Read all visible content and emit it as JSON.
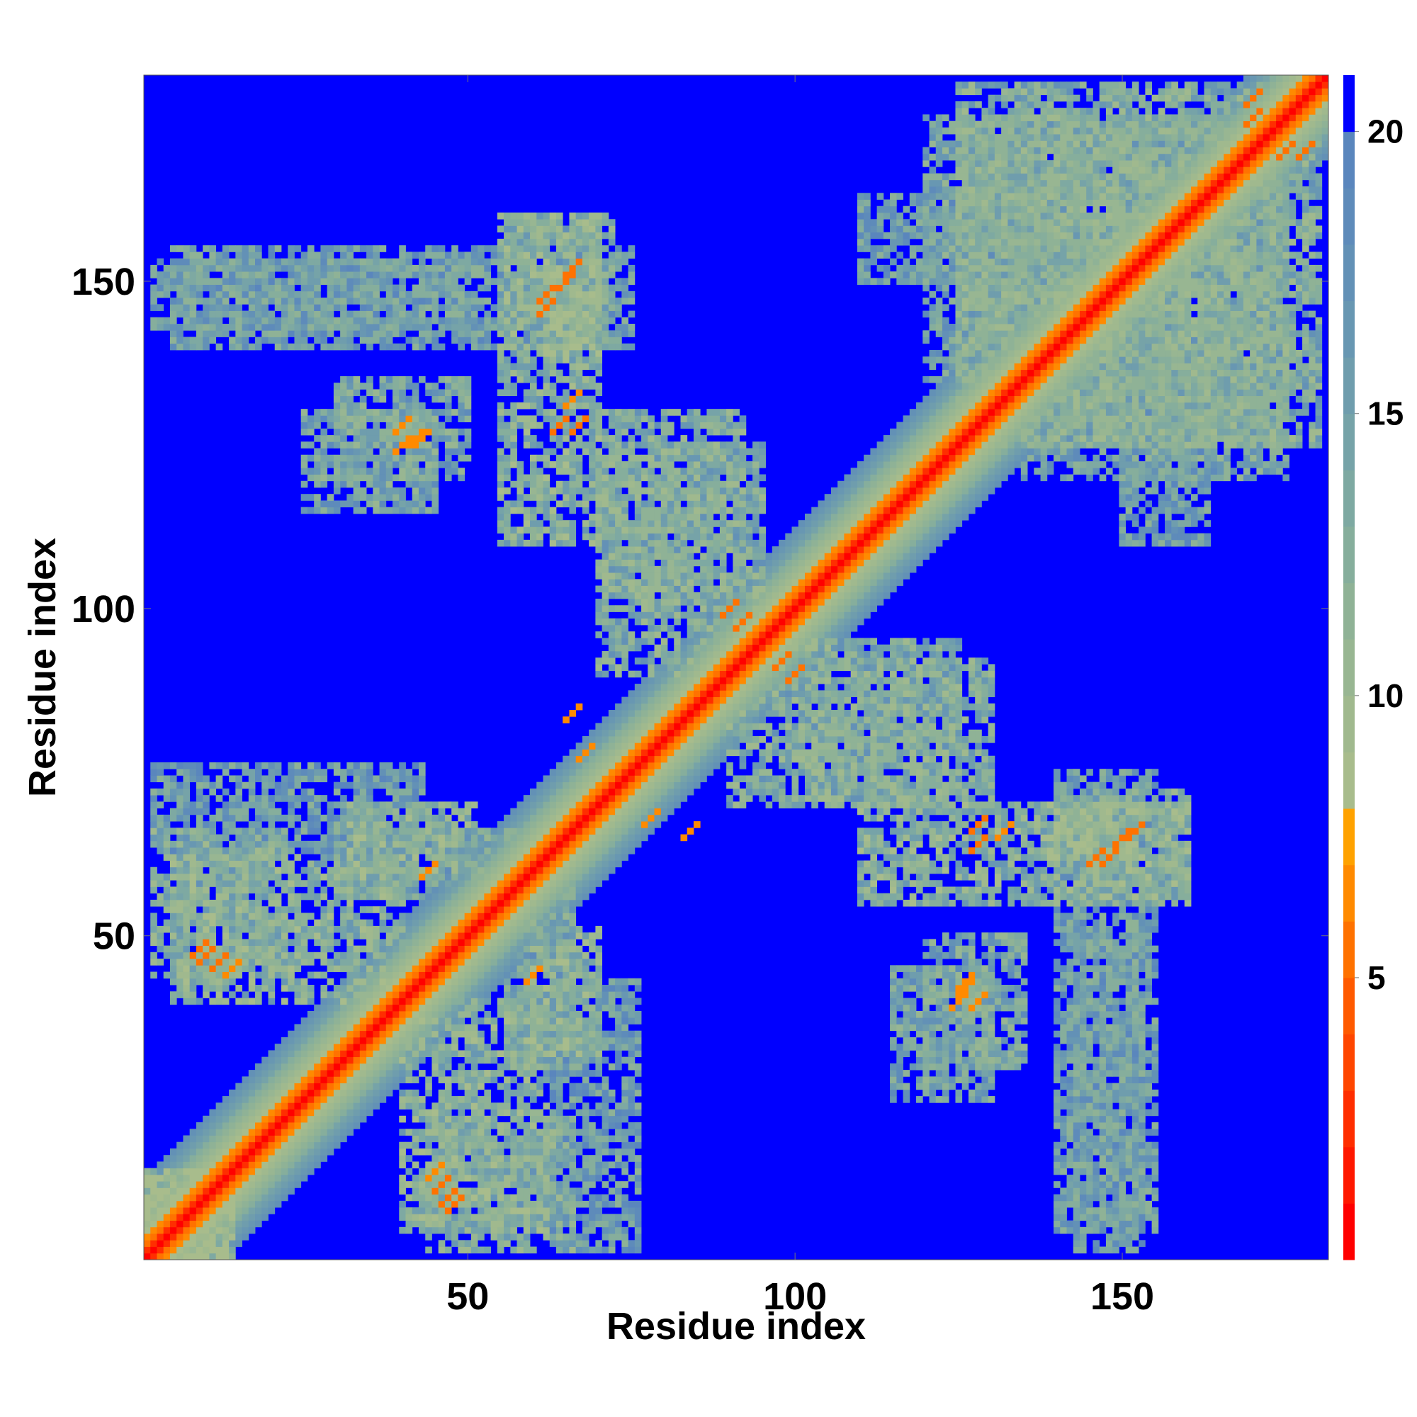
{
  "chart_data": {
    "type": "heatmap",
    "title": "",
    "xlabel": "Residue index",
    "ylabel": "Residue index",
    "n_residues": 181,
    "xlim": [
      1,
      181
    ],
    "ylim": [
      1,
      181
    ],
    "xticks": [
      50,
      100,
      150
    ],
    "xtick_labels": [
      "50",
      "100",
      "150"
    ],
    "yticks": [
      50,
      100,
      150
    ],
    "ytick_labels": [
      "50",
      "100",
      "150"
    ],
    "colorbar": {
      "range": [
        0,
        21
      ],
      "ticks": [
        5,
        10,
        15,
        20
      ],
      "tick_labels": [
        "5",
        "10",
        "15",
        "20"
      ],
      "placement": "right"
    },
    "colormap": [
      {
        "max": 1,
        "color": "#ff0000"
      },
      {
        "max": 2,
        "color": "#ff1800"
      },
      {
        "max": 3,
        "color": "#ff2e00"
      },
      {
        "max": 4,
        "color": "#ff4600"
      },
      {
        "max": 5,
        "color": "#ff5a00"
      },
      {
        "max": 6,
        "color": "#ff7200"
      },
      {
        "max": 7,
        "color": "#ff8a00"
      },
      {
        "max": 8,
        "color": "#ffa200"
      },
      {
        "max": 9,
        "color": "#a8bc8c"
      },
      {
        "max": 10,
        "color": "#a0b98e"
      },
      {
        "max": 11,
        "color": "#98b692"
      },
      {
        "max": 12,
        "color": "#8fb296"
      },
      {
        "max": 13,
        "color": "#86ae9c"
      },
      {
        "max": 14,
        "color": "#7ea9a2"
      },
      {
        "max": 15,
        "color": "#76a3a8"
      },
      {
        "max": 16,
        "color": "#6f9dad"
      },
      {
        "max": 17,
        "color": "#6897b2"
      },
      {
        "max": 18,
        "color": "#6391b6"
      },
      {
        "max": 19,
        "color": "#5e8bba"
      },
      {
        "max": 20,
        "color": "#5a86bd"
      },
      {
        "max": 21,
        "color": "#0000ff"
      }
    ],
    "background_value": 21,
    "diagonal_band": [
      {
        "offset": 0,
        "value": 1
      },
      {
        "offset": 1,
        "value": 3
      },
      {
        "offset": 2,
        "value": 6
      },
      {
        "offset": 3,
        "value": 7
      },
      {
        "offset": 4,
        "value": 9
      },
      {
        "offset": 5,
        "value": 10
      },
      {
        "offset": 6,
        "value": 11
      },
      {
        "offset": 7,
        "value": 12
      },
      {
        "offset": 8,
        "value": 13
      },
      {
        "offset": 9,
        "value": 15
      },
      {
        "offset": 10,
        "value": 16
      },
      {
        "offset": 11,
        "value": 17
      },
      {
        "offset": 12,
        "value": 18
      }
    ],
    "contact_regions": [
      {
        "i": [
          1,
          14
        ],
        "j": [
          1,
          14
        ],
        "value": 11
      },
      {
        "i": [
          5,
          40
        ],
        "j": [
          40,
          62
        ],
        "value": 13
      },
      {
        "i": [
          2,
          22
        ],
        "j": [
          44,
          66
        ],
        "value": 14
      },
      {
        "i": [
          32,
          52
        ],
        "j": [
          60,
          70
        ],
        "value": 13
      },
      {
        "i": [
          25,
          45
        ],
        "j": [
          115,
          130
        ],
        "value": 15
      },
      {
        "i": [
          2,
          50
        ],
        "j": [
          143,
          153
        ],
        "value": 16
      },
      {
        "i": [
          55,
          70
        ],
        "j": [
          110,
          160
        ],
        "value": 13
      },
      {
        "i": [
          62,
          70
        ],
        "j": [
          140,
          153
        ],
        "value": 12
      },
      {
        "i": [
          70,
          95
        ],
        "j": [
          90,
          125
        ],
        "value": 14
      },
      {
        "i": [
          56,
          66
        ],
        "j": [
          30,
          58
        ],
        "value": 15
      },
      {
        "i": [
          63,
          76
        ],
        "j": [
          2,
          43
        ],
        "value": 16
      },
      {
        "i": [
          120,
          135
        ],
        "j": [
          30,
          50
        ],
        "value": 15
      },
      {
        "i": [
          140,
          155
        ],
        "j": [
          5,
          75
        ],
        "value": 16
      },
      {
        "i": [
          140,
          160
        ],
        "j": [
          55,
          72
        ],
        "value": 14
      },
      {
        "i": [
          100,
          130
        ],
        "j": [
          70,
          92
        ],
        "value": 14
      },
      {
        "i": [
          120,
          170
        ],
        "j": [
          135,
          175
        ],
        "value": 15
      },
      {
        "i": [
          110,
          135
        ],
        "j": [
          150,
          163
        ],
        "value": 16
      },
      {
        "i": [
          125,
          175
        ],
        "j": [
          125,
          180
        ],
        "value": 14
      }
    ],
    "close_contacts": [
      {
        "i": 90,
        "j": 100,
        "value": 6
      },
      {
        "i": 92,
        "j": 98,
        "value": 6
      },
      {
        "i": 96,
        "j": 94,
        "value": 6
      },
      {
        "i": 170,
        "j": 178,
        "value": 6
      },
      {
        "i": 175,
        "j": 170,
        "value": 6
      },
      {
        "i": 65,
        "j": 150,
        "value": 6
      },
      {
        "i": 62,
        "j": 146,
        "value": 6
      },
      {
        "i": 64,
        "j": 128,
        "value": 6
      },
      {
        "i": 10,
        "j": 47,
        "value": 6
      },
      {
        "i": 14,
        "j": 45,
        "value": 7
      },
      {
        "i": 128,
        "j": 67,
        "value": 6
      },
      {
        "i": 148,
        "j": 62,
        "value": 6
      },
      {
        "i": 152,
        "j": 66,
        "value": 6
      },
      {
        "i": 46,
        "j": 12,
        "value": 6
      },
      {
        "i": 48,
        "j": 9,
        "value": 6
      },
      {
        "i": 20,
        "j": 18,
        "value": 6
      },
      {
        "i": 6,
        "j": 8,
        "value": 6
      },
      {
        "i": 128,
        "j": 40,
        "value": 7
      },
      {
        "i": 126,
        "j": 42,
        "value": 7
      },
      {
        "i": 40,
        "j": 125,
        "value": 7
      },
      {
        "i": 43,
        "j": 126,
        "value": 7
      },
      {
        "i": 78,
        "j": 68,
        "value": 7
      },
      {
        "i": 84,
        "j": 66,
        "value": 7
      },
      {
        "i": 60,
        "j": 44,
        "value": 7
      },
      {
        "i": 66,
        "j": 132,
        "value": 7
      }
    ]
  }
}
